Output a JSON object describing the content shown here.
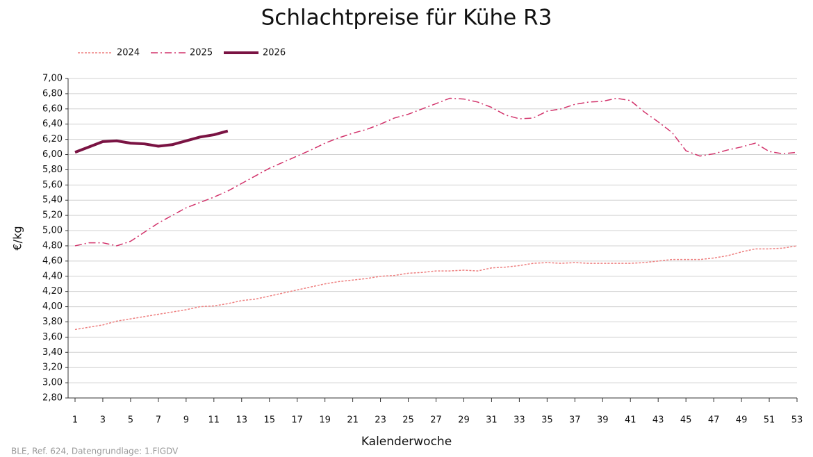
{
  "chart_data": {
    "type": "line",
    "title": "Schlachtpreise für Kühe R3",
    "ylabel": "€/kg",
    "xlabel": "Kalenderwoche",
    "note": "BLE, Ref. 624, Datengrundlage: 1.FlGDV",
    "x": [
      1,
      2,
      3,
      4,
      5,
      6,
      7,
      8,
      9,
      10,
      11,
      12,
      13,
      14,
      15,
      16,
      17,
      18,
      19,
      20,
      21,
      22,
      23,
      24,
      25,
      26,
      27,
      28,
      29,
      30,
      31,
      32,
      33,
      34,
      35,
      36,
      37,
      38,
      39,
      40,
      41,
      42,
      43,
      44,
      45,
      46,
      47,
      48,
      49,
      50,
      51,
      52,
      53
    ],
    "series": [
      {
        "name": "2024",
        "color": "#ee7f7f",
        "style": "dotted",
        "values": [
          3.7,
          3.73,
          3.76,
          3.81,
          3.84,
          3.87,
          3.9,
          3.93,
          3.96,
          4.0,
          4.01,
          4.04,
          4.08,
          4.1,
          4.14,
          4.18,
          4.22,
          4.26,
          4.3,
          4.33,
          4.35,
          4.37,
          4.4,
          4.41,
          4.44,
          4.45,
          4.47,
          4.47,
          4.48,
          4.47,
          4.51,
          4.52,
          4.54,
          4.57,
          4.58,
          4.57,
          4.58,
          4.57,
          4.57,
          4.57,
          4.57,
          4.58,
          4.6,
          4.62,
          4.62,
          4.62,
          4.64,
          4.67,
          4.72,
          4.76,
          4.76,
          4.77,
          4.8
        ]
      },
      {
        "name": "2025",
        "color": "#d2336b",
        "style": "dashdot",
        "values": [
          4.8,
          4.84,
          4.84,
          4.8,
          4.86,
          4.98,
          5.1,
          5.2,
          5.3,
          5.37,
          5.44,
          5.52,
          5.62,
          5.72,
          5.82,
          5.9,
          5.98,
          6.06,
          6.15,
          6.22,
          6.28,
          6.33,
          6.4,
          6.48,
          6.53,
          6.6,
          6.67,
          6.74,
          6.73,
          6.69,
          6.62,
          6.52,
          6.47,
          6.48,
          6.57,
          6.6,
          6.66,
          6.69,
          6.7,
          6.74,
          6.71,
          6.56,
          6.43,
          6.29,
          6.05,
          5.98,
          6.01,
          6.06,
          6.1,
          6.15,
          6.04,
          6.01,
          6.03
        ]
      },
      {
        "name": "2026",
        "color": "#7a1343",
        "style": "solid",
        "values": [
          6.03,
          6.1,
          6.17,
          6.18,
          6.15,
          6.14,
          6.11,
          6.13,
          6.18,
          6.23,
          6.26,
          6.31,
          null,
          null,
          null,
          null,
          null,
          null,
          null,
          null,
          null,
          null,
          null,
          null,
          null,
          null,
          null,
          null,
          null,
          null,
          null,
          null,
          null,
          null,
          null,
          null,
          null,
          null,
          null,
          null,
          null,
          null,
          null,
          null,
          null,
          null,
          null,
          null,
          null,
          null,
          null,
          null,
          null
        ]
      }
    ],
    "xlim": [
      0.5,
      53
    ],
    "xticks": [
      1,
      3,
      5,
      7,
      9,
      11,
      13,
      15,
      17,
      19,
      21,
      23,
      25,
      27,
      29,
      31,
      33,
      35,
      37,
      39,
      41,
      43,
      45,
      47,
      49,
      51,
      53
    ],
    "ylim": [
      2.8,
      7.0
    ],
    "yticks": [
      {
        "value": 2.8,
        "label": "2,80"
      },
      {
        "value": 3.0,
        "label": "3,00"
      },
      {
        "value": 3.2,
        "label": "3,20"
      },
      {
        "value": 3.4,
        "label": "3,40"
      },
      {
        "value": 3.6,
        "label": "3,60"
      },
      {
        "value": 3.8,
        "label": "3,80"
      },
      {
        "value": 4.0,
        "label": "4,00"
      },
      {
        "value": 4.2,
        "label": "4,20"
      },
      {
        "value": 4.4,
        "label": "4,40"
      },
      {
        "value": 4.6,
        "label": "4,60"
      },
      {
        "value": 4.8,
        "label": "4,80"
      },
      {
        "value": 5.0,
        "label": "5,00"
      },
      {
        "value": 5.2,
        "label": "5,20"
      },
      {
        "value": 5.4,
        "label": "5,40"
      },
      {
        "value": 5.6,
        "label": "5,60"
      },
      {
        "value": 5.8,
        "label": "5,80"
      },
      {
        "value": 6.0,
        "label": "6,00"
      },
      {
        "value": 6.2,
        "label": "6,20"
      },
      {
        "value": 6.4,
        "label": "6,40"
      },
      {
        "value": 6.6,
        "label": "6,60"
      },
      {
        "value": 6.8,
        "label": "6,80"
      },
      {
        "value": 7.0,
        "label": "7,00"
      }
    ],
    "grid": true,
    "legend": "top-left"
  }
}
